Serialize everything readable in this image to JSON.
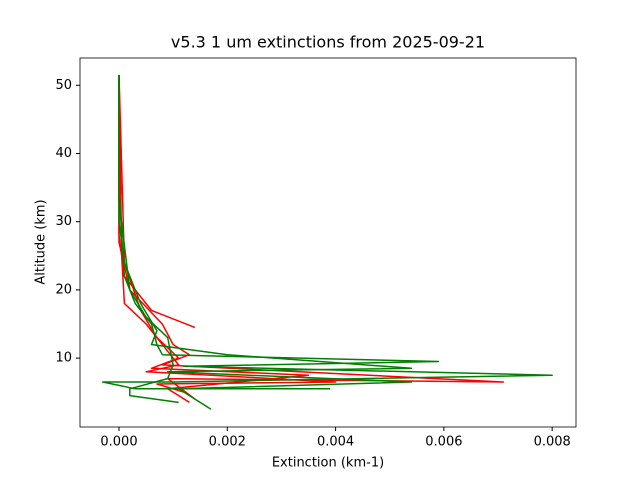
{
  "chart_data": {
    "type": "line",
    "title": "v5.3 1 um extinctions from 2025-09-21",
    "x_label": "Extinction (km-1)",
    "y_label": "Altitude (km)",
    "xlim": [
      -0.00072,
      0.00844
    ],
    "ylim": [
      -0.1,
      54
    ],
    "xticks": [
      {
        "value": 0,
        "label": "0.000"
      },
      {
        "value": 0.002,
        "label": "0.002"
      },
      {
        "value": 0.004,
        "label": "0.004"
      },
      {
        "value": 0.006,
        "label": "0.006"
      },
      {
        "value": 0.008,
        "label": "0.008"
      }
    ],
    "yticks": [
      10,
      20,
      30,
      40,
      50
    ],
    "series": [
      {
        "color": "#ff0000",
        "x": [
          0,
          0,
          0.0001,
          0.0003,
          0.0006,
          0.0014
        ],
        "y": [
          51.5,
          28,
          22,
          20,
          17,
          14.5
        ]
      },
      {
        "color": "#ff0000",
        "x": [
          0,
          0,
          0.0002,
          0.0008,
          0.001,
          0.0013,
          0.0008,
          0.0071,
          0.0009,
          0.0014
        ],
        "y": [
          51.5,
          27,
          20,
          15,
          12,
          10.5,
          9,
          6.5,
          7,
          4
        ]
      },
      {
        "color": "#ff0000",
        "x": [
          0,
          5e-05,
          0.0001,
          0.0005,
          0.0009,
          0.0011,
          0.0005,
          0.004,
          0.0007,
          0.0012
        ],
        "y": [
          51.5,
          25,
          18,
          15,
          11,
          9,
          8,
          6.5,
          6.2,
          5
        ]
      },
      {
        "color": "#ff0000",
        "x": [
          0,
          0.0001,
          0.0004,
          0.0007,
          0.0011,
          0.0006,
          0.0035,
          0.0009,
          0.0013
        ],
        "y": [
          51.5,
          24,
          17,
          13,
          10,
          8.5,
          7.5,
          5.5,
          3.5
        ]
      },
      {
        "color": "#008000",
        "x": [
          0,
          0,
          5e-05,
          0.0001,
          0.0003,
          0.0006,
          0.0007,
          0.0008,
          0.0059,
          0.0012,
          0.008,
          0.001,
          -0.0003,
          0.0003,
          0.0039
        ],
        "y": [
          51.5,
          35,
          28,
          22,
          18,
          15,
          12,
          10.5,
          9.5,
          8.8,
          7.5,
          6.5,
          6.5,
          5.5,
          5.5
        ]
      },
      {
        "color": "#008000",
        "x": [
          0,
          0,
          0.0001,
          0.0004,
          0.0007,
          0.0006,
          0.002,
          0.0054,
          0.0009,
          0.0054,
          0.0011,
          0.0017
        ],
        "y": [
          51.5,
          30,
          24,
          18,
          14,
          12,
          10.5,
          8.5,
          8,
          6.5,
          5.5,
          2.5
        ]
      },
      {
        "color": "#008000",
        "x": [
          0,
          0,
          0.0002,
          0.0005,
          0.0009,
          0.001,
          0.0009,
          0.0002,
          0.0002,
          0.0011
        ],
        "y": [
          51.5,
          33,
          20,
          16,
          13,
          9,
          7,
          5.5,
          4.5,
          3.5
        ]
      }
    ]
  }
}
